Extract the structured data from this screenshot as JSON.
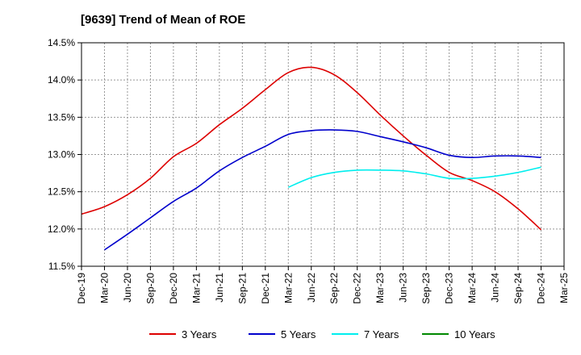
{
  "chart_data": {
    "type": "line",
    "title": "[9639]  Trend of Mean of ROE",
    "xlabel": "",
    "ylabel": "",
    "ylim": [
      11.5,
      14.5
    ],
    "yticks": [
      "11.5%",
      "12.0%",
      "12.5%",
      "13.0%",
      "13.5%",
      "14.0%",
      "14.5%"
    ],
    "ytick_values": [
      11.5,
      12.0,
      12.5,
      13.0,
      13.5,
      14.0,
      14.5
    ],
    "categories": [
      "Dec-19",
      "Mar-20",
      "Jun-20",
      "Sep-20",
      "Dec-20",
      "Mar-21",
      "Jun-21",
      "Sep-21",
      "Dec-21",
      "Mar-22",
      "Jun-22",
      "Sep-22",
      "Dec-22",
      "Mar-23",
      "Jun-23",
      "Sep-23",
      "Dec-23",
      "Mar-24",
      "Jun-24",
      "Sep-24",
      "Dec-24",
      "Mar-25"
    ],
    "grid": true,
    "legend_position": "bottom",
    "series": [
      {
        "name": "3 Years",
        "color": "#dd0000",
        "values": [
          12.2,
          12.3,
          12.46,
          12.68,
          12.97,
          13.15,
          13.4,
          13.62,
          13.87,
          14.1,
          14.17,
          14.07,
          13.83,
          13.53,
          13.25,
          12.99,
          12.76,
          12.65,
          12.5,
          12.27,
          11.99,
          null
        ]
      },
      {
        "name": "5 Years",
        "color": "#0000cc",
        "values": [
          null,
          11.72,
          11.93,
          12.15,
          12.37,
          12.55,
          12.78,
          12.96,
          13.11,
          13.27,
          13.32,
          13.33,
          13.31,
          13.24,
          13.17,
          13.09,
          12.99,
          12.96,
          12.98,
          12.98,
          12.96,
          null
        ]
      },
      {
        "name": "7 Years",
        "color": "#00eeee",
        "values": [
          null,
          null,
          null,
          null,
          null,
          null,
          null,
          null,
          null,
          12.56,
          12.69,
          12.76,
          12.79,
          12.79,
          12.78,
          12.74,
          12.68,
          12.68,
          12.71,
          12.76,
          12.83,
          null
        ]
      },
      {
        "name": "10 Years",
        "color": "#008800",
        "values": [
          null,
          null,
          null,
          null,
          null,
          null,
          null,
          null,
          null,
          null,
          null,
          null,
          null,
          null,
          null,
          null,
          null,
          null,
          null,
          null,
          null,
          null
        ]
      }
    ]
  }
}
